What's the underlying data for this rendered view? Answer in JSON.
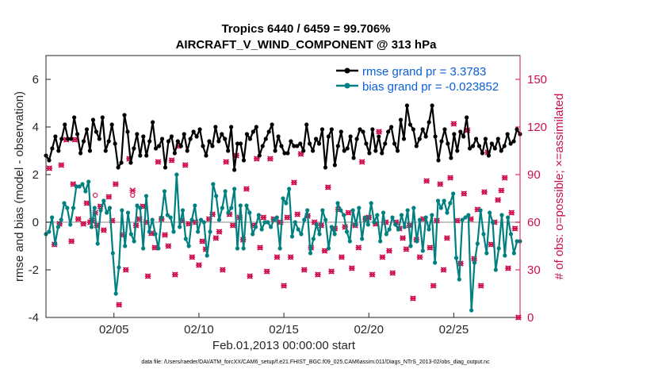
{
  "chart_data": {
    "type": "line",
    "title_line1": "Tropics 6440 / 6459 = 99.706%",
    "title_line2": "AIRCRAFT_V_WIND_COMPONENT @ 313 hPa",
    "xlabel": "Feb.01,2013 00:00:00 start",
    "ylabel_left": "rmse and bias (model - observation)",
    "ylabel_right": "# of obs: o=possible; ×=assimilated",
    "footnote": "data file: /Users/raeder/DAI/ATM_forcXX/CAM6_setup/f.e21.FHIST_BGC.f09_025.CAM6assim.011/Diags_NTrS_2013-02/obs_diag_output.nc",
    "x_range": [
      1,
      28.9
    ],
    "ylim_left": [
      -4,
      7
    ],
    "ylim_right": [
      0,
      165
    ],
    "left_ticks": [
      "-4",
      "-2",
      "0",
      "2",
      "4",
      "6"
    ],
    "right_ticks": [
      "0",
      "30",
      "60",
      "90",
      "120",
      "150"
    ],
    "x_ticks": [
      {
        "x": 5,
        "label": "02/05"
      },
      {
        "x": 10,
        "label": "02/10"
      },
      {
        "x": 15,
        "label": "02/15"
      },
      {
        "x": 20,
        "label": "02/20"
      },
      {
        "x": 25,
        "label": "02/25"
      }
    ],
    "grid": false,
    "legend_position": "top-right",
    "colors": {
      "rmse": "#000000",
      "bias": "#008080",
      "obs": "#d0104c",
      "zero_line": "#b0b0b0"
    },
    "series": [
      {
        "name": "rmse grand pr = 3.3783",
        "axis": "left",
        "values": [
          2.8,
          2.6,
          3.1,
          3.6,
          3.0,
          3.5,
          4.1,
          3.5,
          3.5,
          4.4,
          3.7,
          2.9,
          3.4,
          3.9,
          3.0,
          4.3,
          3.8,
          3.5,
          4.4,
          3.0,
          3.4,
          4.1,
          3.3,
          2.3,
          2.5,
          4.5,
          3.8,
          2.5,
          3.1,
          3.7,
          2.8,
          3.6,
          2.8,
          3.4,
          4.2,
          3.1,
          3.2,
          3.5,
          2.3,
          3.4,
          3.6,
          2.9,
          3.4,
          3.2,
          3.7,
          3.0,
          3.5,
          3.8,
          3.6,
          3.9,
          3.2,
          2.8,
          3.4,
          3.2,
          4.0,
          3.4,
          3.7,
          3.5,
          3.0,
          4.0,
          2.2,
          3.3,
          3.3,
          2.6,
          3.7,
          3.5,
          3.8,
          4.0,
          2.8,
          3.2,
          3.5,
          3.8,
          4.1,
          3.0,
          3.6,
          3.2,
          2.9,
          2.9,
          3.4,
          3.2,
          3.2,
          3.3,
          3.0,
          4.1,
          3.3,
          3.0,
          3.5,
          3.3,
          3.9,
          2.3,
          3.6,
          3.9,
          2.4,
          3.2,
          3.8,
          3.0,
          3.1,
          3.6,
          2.7,
          3.5,
          3.9,
          3.8,
          3.3,
          2.9,
          3.9,
          3.0,
          3.6,
          2.9,
          3.3,
          3.8,
          4.0,
          3.3,
          3.0,
          4.3,
          3.5,
          4.9,
          4.1,
          3.9,
          3.2,
          3.5,
          3.9,
          3.6,
          4.2,
          4.9,
          3.6,
          2.6,
          3.4,
          3.9,
          3.3,
          2.7,
          3.7,
          3.0,
          3.8,
          3.6,
          4.4,
          3.1,
          3.2,
          3.5,
          3.2,
          2.9,
          3.5,
          2.8,
          3.3,
          3.1,
          3.5,
          3.0,
          3.2,
          3.7,
          3.3,
          3.4,
          3.9,
          3.7
        ]
      },
      {
        "name": "bias grand pr = -0.023852",
        "axis": "left",
        "values": [
          -0.5,
          -0.4,
          0.2,
          -0.9,
          -0.2,
          0.1,
          0.8,
          0.6,
          -0.1,
          0.6,
          1.5,
          1.5,
          1.6,
          1.3,
          1.7,
          -0.2,
          0.6,
          -0.9,
          0.5,
          0.9,
          0.4,
          0.6,
          -1.3,
          -3.0,
          -1.9,
          0.5,
          -1.0,
          0.4,
          -0.5,
          -0.8,
          0.7,
          0.6,
          -1.1,
          1.1,
          -0.4,
          0.1,
          -0.5,
          -1.1,
          0.2,
          1.3,
          0.3,
          0.2,
          -0.4,
          2.0,
          -0.2,
          0.5,
          -0.7,
          -1.0,
          0.1,
          0.7,
          -0.4,
          0.1,
          0.0,
          -1.4,
          -0.4,
          1.6,
          1.1,
          0.1,
          0.6,
          1.3,
          0.4,
          0.6,
          1.4,
          -1.1,
          0.7,
          -1.1,
          0.7,
          0.4,
          -0.5,
          -0.2,
          0.3,
          -0.3,
          0.0,
          0.0,
          -0.2,
          0.1,
          0.2,
          -1.1,
          1.0,
          0.8,
          1.4,
          -0.6,
          0.0,
          -0.3,
          -0.5,
          0.1,
          0.5,
          -1.3,
          -0.7,
          -0.1,
          -0.5,
          0.5,
          0.1,
          -1.1,
          -0.2,
          -0.5,
          0.8,
          0.5,
          0.3,
          -0.4,
          -0.8,
          0.5,
          -0.1,
          0.6,
          -0.7,
          0.2,
          -0.1,
          0.8,
          0.0,
          0.3,
          -0.8,
          0.4,
          -0.5,
          -0.3,
          0.2,
          -0.1,
          -0.3,
          0.3,
          -0.2,
          0.5,
          -1.0,
          0.6,
          -0.8,
          0.1,
          -1.2,
          0.2,
          -0.3,
          0.3,
          -1.7,
          0.9,
          0.6,
          0.9,
          0.4,
          0.8,
          1.2,
          -1.5,
          -2.4,
          0.1,
          0.2,
          0.3,
          -3.7,
          -1.7,
          -0.9,
          0.5,
          -0.5,
          -1.3,
          0.4,
          0.0,
          -2.0,
          -1.1,
          0.3,
          -1.4,
          0.2,
          -0.5,
          -1.3,
          -0.8,
          -0.8
        ]
      }
    ],
    "obs_possible_points": [
      [
        1.2,
        94
      ],
      [
        1.5,
        46
      ],
      [
        1.8,
        59
      ],
      [
        1.9,
        96
      ],
      [
        2.2,
        112
      ],
      [
        2.5,
        48
      ],
      [
        2.6,
        84
      ],
      [
        2.7,
        112
      ],
      [
        2.9,
        62
      ],
      [
        3.2,
        59
      ],
      [
        3.4,
        72
      ],
      [
        3.6,
        60
      ],
      [
        3.7,
        61
      ],
      [
        3.9,
        77
      ],
      [
        4.0,
        58
      ],
      [
        4.2,
        70
      ],
      [
        4.4,
        55
      ],
      [
        4.7,
        76
      ],
      [
        4.9,
        61
      ],
      [
        5.1,
        84
      ],
      [
        5.3,
        8
      ],
      [
        5.5,
        52
      ],
      [
        5.7,
        30
      ],
      [
        5.9,
        100
      ],
      [
        6.1,
        77
      ],
      [
        6.3,
        58
      ],
      [
        6.5,
        62
      ],
      [
        6.7,
        70
      ],
      [
        6.9,
        60
      ],
      [
        7.0,
        26
      ],
      [
        7.2,
        53
      ],
      [
        7.4,
        44
      ],
      [
        7.6,
        98
      ],
      [
        7.8,
        62
      ],
      [
        8.0,
        52
      ],
      [
        8.2,
        45
      ],
      [
        8.4,
        99
      ],
      [
        8.6,
        27
      ],
      [
        8.8,
        108
      ],
      [
        9.0,
        61
      ],
      [
        9.2,
        96
      ],
      [
        9.4,
        59
      ],
      [
        9.6,
        38
      ],
      [
        9.8,
        60
      ],
      [
        10.0,
        33
      ],
      [
        10.2,
        48
      ],
      [
        10.4,
        43
      ],
      [
        10.6,
        62
      ],
      [
        10.8,
        65
      ],
      [
        11.0,
        50
      ],
      [
        11.2,
        54
      ],
      [
        11.4,
        30
      ],
      [
        11.6,
        98
      ],
      [
        11.8,
        65
      ],
      [
        12.0,
        58
      ],
      [
        12.2,
        102
      ],
      [
        12.4,
        63
      ],
      [
        12.6,
        49
      ],
      [
        12.8,
        81
      ],
      [
        13.0,
        26
      ],
      [
        13.2,
        58
      ],
      [
        13.4,
        100
      ],
      [
        13.6,
        44
      ],
      [
        13.8,
        63
      ],
      [
        14.0,
        29
      ],
      [
        14.2,
        100
      ],
      [
        14.4,
        62
      ],
      [
        14.6,
        38
      ],
      [
        14.8,
        60
      ],
      [
        15.0,
        20
      ],
      [
        15.2,
        63
      ],
      [
        15.4,
        38
      ],
      [
        15.6,
        85
      ],
      [
        15.8,
        65
      ],
      [
        16.0,
        103
      ],
      [
        16.2,
        30
      ],
      [
        16.4,
        64
      ],
      [
        16.6,
        44
      ],
      [
        16.8,
        60
      ],
      [
        17.0,
        27
      ],
      [
        17.2,
        58
      ],
      [
        17.4,
        42
      ],
      [
        17.6,
        82
      ],
      [
        17.8,
        29
      ],
      [
        18.0,
        56
      ],
      [
        18.2,
        68
      ],
      [
        18.4,
        38
      ],
      [
        18.6,
        57
      ],
      [
        18.8,
        66
      ],
      [
        19.0,
        31
      ],
      [
        19.2,
        58
      ],
      [
        19.4,
        44
      ],
      [
        19.6,
        98
      ],
      [
        19.8,
        62
      ],
      [
        20.0,
        63
      ],
      [
        20.2,
        27
      ],
      [
        20.4,
        59
      ],
      [
        20.6,
        117
      ],
      [
        20.8,
        38
      ],
      [
        21.0,
        60
      ],
      [
        21.2,
        42
      ],
      [
        21.4,
        28
      ],
      [
        21.6,
        60
      ],
      [
        21.8,
        56
      ],
      [
        22.0,
        50
      ],
      [
        22.2,
        43
      ],
      [
        22.4,
        58
      ],
      [
        22.6,
        12
      ],
      [
        22.8,
        49
      ],
      [
        23.0,
        38
      ],
      [
        23.2,
        62
      ],
      [
        23.4,
        86
      ],
      [
        23.6,
        44
      ],
      [
        23.8,
        20
      ],
      [
        24.0,
        61
      ],
      [
        24.2,
        84
      ],
      [
        24.4,
        30
      ],
      [
        24.6,
        50
      ],
      [
        24.8,
        88
      ],
      [
        25.0,
        122
      ],
      [
        25.2,
        61
      ],
      [
        25.4,
        34
      ],
      [
        25.6,
        78
      ],
      [
        25.8,
        118
      ],
      [
        26.0,
        62
      ],
      [
        26.2,
        37
      ],
      [
        26.4,
        68
      ],
      [
        26.6,
        20
      ],
      [
        26.8,
        79
      ],
      [
        27.0,
        104
      ],
      [
        27.2,
        46
      ],
      [
        27.4,
        60
      ],
      [
        27.6,
        74
      ],
      [
        27.8,
        80
      ],
      [
        28.0,
        88
      ],
      [
        28.2,
        31
      ],
      [
        28.4,
        66
      ],
      [
        28.6,
        56
      ],
      [
        28.8,
        0
      ]
    ],
    "obs_assimilated_points": [
      [
        1.2,
        94
      ],
      [
        1.5,
        46
      ],
      [
        1.8,
        59
      ],
      [
        1.9,
        96
      ],
      [
        2.2,
        112
      ],
      [
        2.5,
        48
      ],
      [
        2.6,
        84
      ],
      [
        2.7,
        112
      ],
      [
        2.9,
        62
      ],
      [
        3.2,
        59
      ],
      [
        3.4,
        72
      ],
      [
        3.6,
        60
      ],
      [
        3.7,
        61
      ],
      [
        3.9,
        66
      ],
      [
        4.0,
        58
      ],
      [
        4.2,
        70
      ],
      [
        4.4,
        55
      ],
      [
        4.7,
        76
      ],
      [
        4.9,
        61
      ],
      [
        5.1,
        84
      ],
      [
        5.3,
        8
      ],
      [
        5.5,
        52
      ],
      [
        5.7,
        30
      ],
      [
        5.9,
        100
      ],
      [
        6.1,
        80
      ],
      [
        6.3,
        58
      ],
      [
        6.5,
        62
      ],
      [
        6.7,
        70
      ],
      [
        6.9,
        60
      ],
      [
        7.0,
        26
      ],
      [
        7.2,
        53
      ],
      [
        7.4,
        44
      ],
      [
        7.6,
        98
      ],
      [
        7.8,
        62
      ],
      [
        8.0,
        52
      ],
      [
        8.2,
        45
      ],
      [
        8.4,
        99
      ],
      [
        8.6,
        27
      ],
      [
        8.8,
        108
      ],
      [
        9.0,
        61
      ],
      [
        9.2,
        96
      ],
      [
        9.4,
        59
      ],
      [
        9.6,
        38
      ],
      [
        9.8,
        60
      ],
      [
        10.0,
        33
      ],
      [
        10.2,
        48
      ],
      [
        10.4,
        43
      ],
      [
        10.6,
        62
      ],
      [
        10.8,
        65
      ],
      [
        11.0,
        50
      ],
      [
        11.2,
        54
      ],
      [
        11.4,
        30
      ],
      [
        11.6,
        98
      ],
      [
        11.8,
        65
      ],
      [
        12.0,
        58
      ],
      [
        12.2,
        102
      ],
      [
        12.4,
        63
      ],
      [
        12.6,
        49
      ],
      [
        12.8,
        81
      ],
      [
        13.0,
        26
      ],
      [
        13.2,
        58
      ],
      [
        13.4,
        100
      ],
      [
        13.6,
        44
      ],
      [
        13.8,
        63
      ],
      [
        14.0,
        29
      ],
      [
        14.2,
        100
      ],
      [
        14.4,
        62
      ],
      [
        14.6,
        38
      ],
      [
        14.8,
        60
      ],
      [
        15.0,
        20
      ],
      [
        15.2,
        63
      ],
      [
        15.4,
        38
      ],
      [
        15.6,
        85
      ],
      [
        15.8,
        65
      ],
      [
        16.0,
        103
      ],
      [
        16.2,
        30
      ],
      [
        16.4,
        64
      ],
      [
        16.6,
        44
      ],
      [
        16.8,
        60
      ],
      [
        17.0,
        27
      ],
      [
        17.2,
        58
      ],
      [
        17.4,
        42
      ],
      [
        17.6,
        82
      ],
      [
        17.8,
        29
      ],
      [
        18.0,
        56
      ],
      [
        18.2,
        68
      ],
      [
        18.4,
        38
      ],
      [
        18.6,
        57
      ],
      [
        18.8,
        66
      ],
      [
        19.0,
        31
      ],
      [
        19.2,
        58
      ],
      [
        19.4,
        44
      ],
      [
        19.6,
        98
      ],
      [
        19.8,
        62
      ],
      [
        20.0,
        63
      ],
      [
        20.2,
        27
      ],
      [
        20.4,
        59
      ],
      [
        20.6,
        117
      ],
      [
        20.8,
        38
      ],
      [
        21.0,
        60
      ],
      [
        21.2,
        42
      ],
      [
        21.4,
        28
      ],
      [
        21.6,
        60
      ],
      [
        21.8,
        56
      ],
      [
        22.0,
        50
      ],
      [
        22.2,
        43
      ],
      [
        22.4,
        58
      ],
      [
        22.6,
        12
      ],
      [
        22.8,
        49
      ],
      [
        23.0,
        38
      ],
      [
        23.2,
        62
      ],
      [
        23.4,
        86
      ],
      [
        23.6,
        44
      ],
      [
        23.8,
        20
      ],
      [
        24.0,
        61
      ],
      [
        24.2,
        84
      ],
      [
        24.4,
        30
      ],
      [
        24.6,
        50
      ],
      [
        24.8,
        88
      ],
      [
        25.0,
        122
      ],
      [
        25.2,
        61
      ],
      [
        25.4,
        34
      ],
      [
        25.6,
        78
      ],
      [
        25.8,
        118
      ],
      [
        26.0,
        62
      ],
      [
        26.2,
        37
      ],
      [
        26.4,
        68
      ],
      [
        26.6,
        20
      ],
      [
        26.8,
        79
      ],
      [
        27.0,
        104
      ],
      [
        27.2,
        46
      ],
      [
        27.4,
        60
      ],
      [
        27.6,
        74
      ],
      [
        27.8,
        80
      ],
      [
        28.0,
        88
      ],
      [
        28.2,
        31
      ],
      [
        28.4,
        66
      ],
      [
        28.6,
        56
      ],
      [
        28.8,
        0
      ]
    ]
  }
}
